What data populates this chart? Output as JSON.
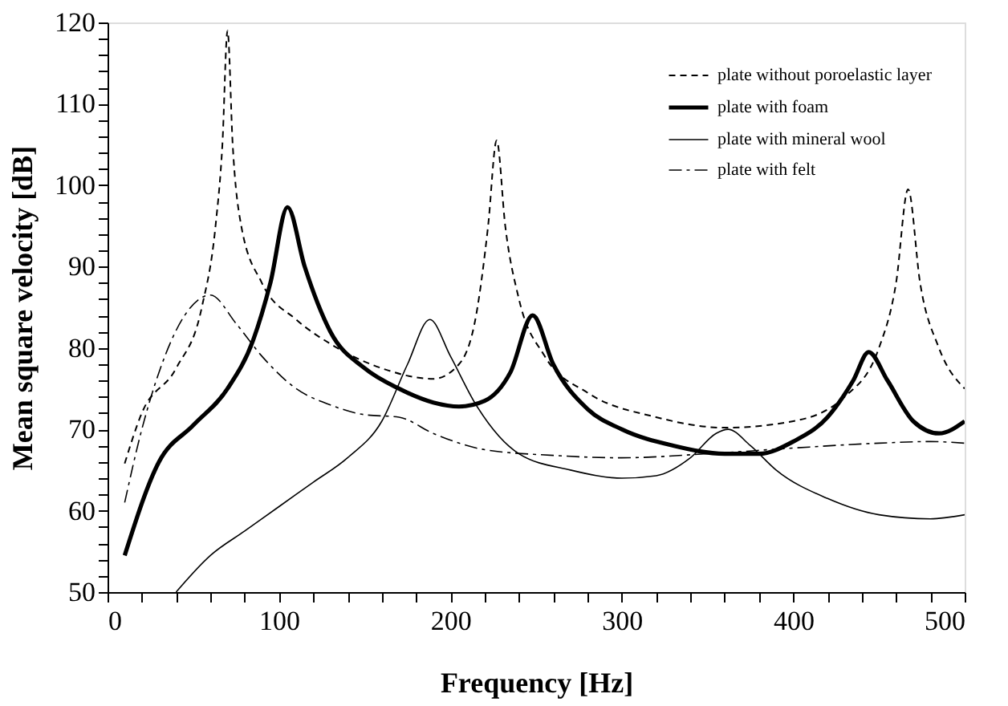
{
  "chart_data": {
    "type": "line",
    "xlabel": "Frequency [Hz]",
    "ylabel": "Mean square velocity [dB]",
    "xlim": [
      0,
      500
    ],
    "ylim": [
      50,
      120
    ],
    "xticks": [
      0,
      {
        "value": 20,
        "label": null
      },
      {
        "value": 40,
        "label": null
      },
      {
        "value": 60,
        "label": null
      },
      {
        "value": 80,
        "label": null
      },
      100,
      {
        "value": 120,
        "label": null
      },
      {
        "value": 140,
        "label": null
      },
      {
        "value": 160,
        "label": null
      },
      {
        "value": 180,
        "label": null
      },
      200,
      {
        "value": 220,
        "label": null
      },
      {
        "value": 240,
        "label": null
      },
      {
        "value": 260,
        "label": null
      },
      {
        "value": 280,
        "label": null
      },
      300,
      {
        "value": 320,
        "label": null
      },
      {
        "value": 340,
        "label": null
      },
      {
        "value": 360,
        "label": null
      },
      {
        "value": 380,
        "label": null
      },
      400,
      {
        "value": 420,
        "label": null
      },
      {
        "value": 440,
        "label": null
      },
      {
        "value": 460,
        "label": null
      },
      {
        "value": 480,
        "label": null
      },
      500
    ],
    "yticks": [
      50,
      {
        "value": 52,
        "label": null
      },
      {
        "value": 54,
        "label": null
      },
      {
        "value": 56,
        "label": null
      },
      {
        "value": 58,
        "label": null
      },
      60,
      {
        "value": 62,
        "label": null
      },
      {
        "value": 64,
        "label": null
      },
      {
        "value": 66,
        "label": null
      },
      {
        "value": 68,
        "label": null
      },
      70,
      {
        "value": 72,
        "label": null
      },
      {
        "value": 74,
        "label": null
      },
      {
        "value": 76,
        "label": null
      },
      {
        "value": 78,
        "label": null
      },
      80,
      {
        "value": 82,
        "label": null
      },
      {
        "value": 84,
        "label": null
      },
      {
        "value": 86,
        "label": null
      },
      {
        "value": 88,
        "label": null
      },
      90,
      {
        "value": 92,
        "label": null
      },
      {
        "value": 94,
        "label": null
      },
      {
        "value": 96,
        "label": null
      },
      {
        "value": 98,
        "label": null
      },
      100,
      {
        "value": 102,
        "label": null
      },
      {
        "value": 104,
        "label": null
      },
      {
        "value": 106,
        "label": null
      },
      {
        "value": 108,
        "label": null
      },
      110,
      {
        "value": 112,
        "label": null
      },
      {
        "value": 114,
        "label": null
      },
      {
        "value": 116,
        "label": null
      },
      {
        "value": 118,
        "label": null
      },
      120
    ],
    "grid": false,
    "legend": "top right",
    "marker": "none",
    "series": [
      {
        "name": "plate without poroelastic layer",
        "color": "#000000",
        "line_style": "dashed",
        "x": [
          10,
          20,
          40,
          55,
          63,
          67,
          70,
          73,
          78,
          90,
          110,
          130,
          160,
          190,
          205,
          215,
          222,
          227,
          232,
          240,
          255,
          280,
          320,
          360,
          400,
          430,
          450,
          460,
          467,
          474,
          485,
          500
        ],
        "values": [
          65.8,
          72,
          77.5,
          85,
          95,
          105,
          119,
          105,
          95,
          88,
          83.5,
          80.5,
          77.5,
          76.2,
          78,
          84,
          95,
          105.5,
          95,
          86,
          79,
          74.5,
          71.5,
          70.2,
          71,
          74,
          80,
          88,
          99.5,
          88,
          80,
          75
        ]
      },
      {
        "name": "plate with foam",
        "color": "#000000",
        "line_style": "solid",
        "x": [
          10,
          30,
          50,
          70,
          85,
          95,
          105,
          115,
          130,
          150,
          170,
          190,
          205,
          220,
          235,
          248,
          260,
          280,
          300,
          330,
          360,
          380,
          400,
          420,
          435,
          444,
          455,
          470,
          485,
          500
        ],
        "values": [
          54.5,
          66,
          70.5,
          75,
          81,
          88,
          97.3,
          90,
          82,
          77.5,
          75,
          73.3,
          72.8,
          73.5,
          77,
          84,
          78,
          72.5,
          70,
          68,
          67,
          67,
          68.5,
          71.5,
          76,
          79.5,
          76,
          71,
          69.5,
          71
        ]
      },
      {
        "name": "plate with mineral wool",
        "color": "#000000",
        "line_style": "solid",
        "x": [
          40,
          60,
          80,
          100,
          120,
          140,
          160,
          175,
          188,
          200,
          215,
          240,
          270,
          300,
          320,
          340,
          355,
          362,
          375,
          390,
          420,
          450,
          480,
          500
        ],
        "values": [
          50,
          54.5,
          57.5,
          60.5,
          63.5,
          66.5,
          71,
          78,
          83.5,
          79,
          73,
          67,
          65,
          64,
          64.3,
          66.5,
          69.5,
          70,
          68,
          65,
          61.5,
          59.5,
          59,
          59.5
        ]
      },
      {
        "name": "plate with felt",
        "color": "#000000",
        "line_style": "dashdot",
        "x": [
          10,
          20,
          30,
          45,
          60,
          75,
          90,
          110,
          130,
          150,
          170,
          190,
          220,
          260,
          300,
          350,
          400,
          450,
          480,
          500
        ],
        "values": [
          61,
          70,
          77,
          84,
          86.5,
          83,
          79,
          75,
          73,
          71.8,
          71.5,
          69.5,
          67.5,
          66.8,
          66.5,
          67,
          67.7,
          68.3,
          68.5,
          68.3
        ]
      }
    ]
  }
}
